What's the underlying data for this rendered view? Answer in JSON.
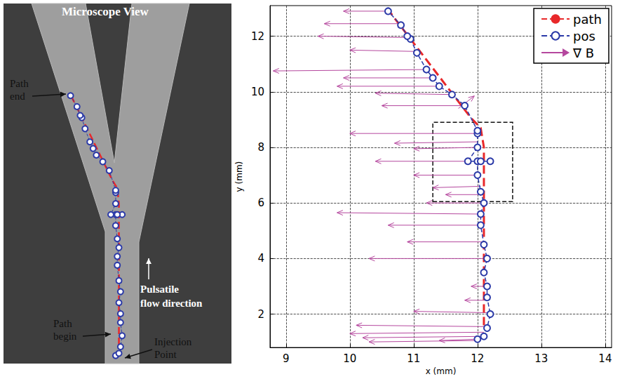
{
  "panel": {
    "title": "Microscope View",
    "path_end": "Path end",
    "path_begin": "Path begin",
    "injection": "Injection Point",
    "flow": "Pulsatile flow direction"
  },
  "chart_data": {
    "type": "line",
    "xlabel": "x (mm)",
    "ylabel": "y (mm)",
    "xlim": [
      8.75,
      14.1
    ],
    "xticks": [
      9,
      10,
      11,
      12,
      13,
      14
    ],
    "ylim": [
      0.8,
      13.1
    ],
    "yticks": [
      2,
      4,
      6,
      8,
      10,
      12
    ],
    "grid": true,
    "legend": "upper right",
    "series": [
      {
        "name": "path",
        "type": "line",
        "color": "#e8282a",
        "line_style": "dashed",
        "marker": "none",
        "x": [
          12.1,
          12.1,
          12.05,
          11.9,
          10.6
        ],
        "y": [
          1.6,
          8.0,
          8.7,
          9.05,
          12.95
        ]
      },
      {
        "name": "pos",
        "type": "line",
        "color": "#2b3aa8",
        "line_style": "dashed",
        "marker": "circle",
        "x": [
          12.0,
          12.1,
          12.15,
          12.2,
          12.15,
          12.15,
          12.1,
          12.15,
          12.1,
          12.05,
          12.05,
          12.1,
          12.05,
          12.0,
          12.0,
          12.2,
          12.05,
          11.85,
          12.0,
          12.0,
          12.0,
          11.8,
          11.6,
          11.4,
          11.3,
          11.2,
          11.05,
          10.95,
          10.9,
          10.8,
          10.6
        ],
        "y": [
          1.1,
          1.2,
          1.5,
          2.0,
          2.6,
          3.0,
          3.5,
          4.0,
          4.5,
          5.2,
          5.6,
          6.0,
          6.4,
          7.0,
          7.5,
          7.5,
          7.5,
          7.5,
          8.0,
          8.5,
          8.6,
          9.5,
          9.9,
          10.2,
          10.5,
          10.8,
          11.4,
          11.9,
          12.0,
          12.4,
          12.9
        ]
      },
      {
        "name": "∇ B",
        "type": "arrow",
        "color": "#b5479e",
        "line_style": "solid",
        "x": [
          10.6,
          10.8,
          10.95,
          11.05,
          11.2,
          11.3,
          11.4,
          11.6,
          11.8,
          11.7,
          12.0,
          12.0,
          12.0,
          11.85,
          12.0,
          12.05,
          12.1,
          12.1,
          12.05,
          12.05,
          12.1,
          12.15,
          12.15,
          12.15,
          12.2,
          12.15,
          12.1,
          12.1,
          12.0,
          12.0
        ],
        "y": [
          12.9,
          12.45,
          11.95,
          11.45,
          10.8,
          10.5,
          10.2,
          9.9,
          9.5,
          9.4,
          8.5,
          8.2,
          8.0,
          7.5,
          7.0,
          6.6,
          6.3,
          6.0,
          5.6,
          5.2,
          4.6,
          4.0,
          3.0,
          2.5,
          2.05,
          1.55,
          1.35,
          1.2,
          1.05,
          1.1
        ],
        "x_end": [
          9.9,
          9.6,
          9.5,
          10.0,
          8.8,
          9.9,
          9.8,
          10.4,
          10.5,
          11.95,
          10.0,
          10.7,
          11.0,
          10.4,
          11.0,
          11.3,
          11.5,
          11.2,
          9.8,
          10.6,
          10.9,
          10.3,
          11.9,
          11.8,
          11.0,
          10.1,
          10.0,
          10.2,
          10.3,
          11.4
        ],
        "y_end": [
          12.9,
          12.45,
          12.0,
          11.5,
          10.75,
          10.5,
          10.2,
          9.95,
          9.5,
          9.85,
          8.5,
          8.15,
          7.95,
          7.5,
          7.0,
          6.55,
          6.3,
          6.0,
          5.65,
          5.2,
          4.6,
          4.0,
          3.0,
          2.5,
          2.1,
          1.6,
          1.3,
          1.15,
          1.0,
          1.05
        ]
      }
    ],
    "highlight_box": {
      "xlim": [
        11.3,
        12.55
      ],
      "ylim": [
        6.05,
        8.9
      ],
      "line_style": "dashed"
    }
  }
}
